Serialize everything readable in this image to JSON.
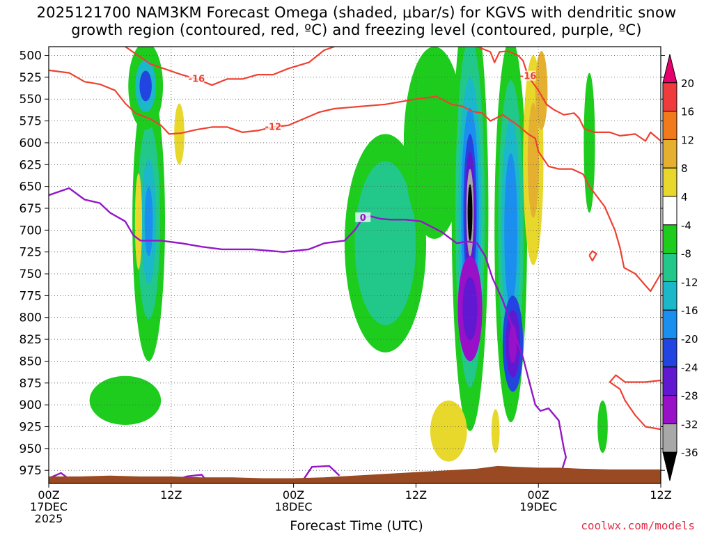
{
  "title": {
    "line1": "2025121700 NAM3KM Forecast Omega (shaded, μbar/s) for KGVS with dendritic snow",
    "line2": "growth region (contoured, red, ºC) and freezing level (contoured, purple, ºC)"
  },
  "credit": "coolwx.com/models",
  "chart_data": {
    "type": "heatmap",
    "xlabel": "Forecast Time (UTC)",
    "x_range_hours": [
      0,
      60
    ],
    "x_ticks": [
      {
        "h": 0,
        "lines": [
          "00Z",
          "17DEC",
          "2025"
        ]
      },
      {
        "h": 12,
        "lines": [
          "12Z"
        ]
      },
      {
        "h": 24,
        "lines": [
          "00Z",
          "18DEC"
        ]
      },
      {
        "h": 36,
        "lines": [
          "12Z"
        ]
      },
      {
        "h": 48,
        "lines": [
          "00Z",
          "19DEC"
        ]
      },
      {
        "h": 60,
        "lines": [
          "12Z"
        ]
      }
    ],
    "y_ticks_hpa": [
      500,
      525,
      550,
      575,
      600,
      625,
      650,
      675,
      700,
      725,
      750,
      775,
      800,
      825,
      850,
      875,
      900,
      925,
      950,
      975
    ],
    "y_range_hpa": [
      490,
      990
    ],
    "grid": "dotted",
    "colorbar": {
      "levels": [
        "20",
        "16",
        "12",
        "8",
        "4",
        "-4",
        "-8",
        "-12",
        "-16",
        "-20",
        "-24",
        "-28",
        "-32",
        "-36"
      ],
      "colors": [
        "#e8006c",
        "#ef3b3b",
        "#f07a1c",
        "#e5b030",
        "#e8d82c",
        "#ffffff",
        "#1ecc1e",
        "#22c88a",
        "#1ab8c8",
        "#1a8ff0",
        "#2244e0",
        "#6018d0",
        "#9810c8",
        "#a8a8a8",
        "#000000"
      ]
    },
    "contours": [
      {
        "kind": "dgz",
        "label": "-16",
        "color": "#ef4030",
        "points": [
          [
            7.5,
            490
          ],
          [
            8.5,
            498
          ],
          [
            10,
            510
          ],
          [
            11.5,
            516
          ],
          [
            13,
            522
          ],
          [
            14.5,
            527
          ],
          [
            16,
            534
          ],
          [
            17.5,
            527
          ],
          [
            19,
            527
          ],
          [
            20.5,
            522
          ],
          [
            22,
            522
          ],
          [
            23.5,
            515
          ],
          [
            25.5,
            508
          ],
          [
            27,
            494
          ],
          [
            28,
            490
          ]
        ]
      },
      {
        "kind": "dgz",
        "label": "-16",
        "color": "#ef4030",
        "points": [
          [
            42,
            490
          ],
          [
            43.3,
            496
          ],
          [
            43.7,
            508
          ],
          [
            44.2,
            496
          ],
          [
            45,
            495
          ],
          [
            46,
            500
          ],
          [
            46.5,
            506
          ],
          [
            47,
            524
          ],
          [
            48,
            540
          ],
          [
            48.8,
            556
          ],
          [
            49.5,
            562
          ],
          [
            50.5,
            568
          ],
          [
            51.5,
            566
          ],
          [
            52,
            572
          ],
          [
            52.5,
            584
          ],
          [
            53.5,
            588
          ],
          [
            55,
            588
          ],
          [
            56,
            592
          ],
          [
            57.5,
            590
          ],
          [
            58.5,
            598
          ],
          [
            59,
            588
          ],
          [
            60,
            598
          ]
        ]
      },
      {
        "kind": "dgz",
        "label": "-12",
        "color": "#ef4030",
        "points": [
          [
            0,
            517
          ],
          [
            2,
            520
          ],
          [
            3.5,
            530
          ],
          [
            5,
            533
          ],
          [
            6.5,
            540
          ],
          [
            7.5,
            555
          ],
          [
            8.5,
            566
          ],
          [
            10,
            573
          ],
          [
            11,
            580
          ],
          [
            11.8,
            590
          ],
          [
            13,
            589
          ],
          [
            14.5,
            585
          ],
          [
            16,
            582
          ],
          [
            17.5,
            582
          ],
          [
            19,
            588
          ],
          [
            20.5,
            586
          ],
          [
            22,
            582
          ],
          [
            23.5,
            580
          ],
          [
            24.5,
            575
          ],
          [
            26.5,
            565
          ],
          [
            28,
            561
          ],
          [
            30,
            559
          ],
          [
            33,
            556
          ],
          [
            36,
            550
          ],
          [
            38,
            547
          ],
          [
            39.5,
            556
          ],
          [
            40.5,
            558
          ],
          [
            41.5,
            564
          ],
          [
            42.5,
            566
          ],
          [
            43.3,
            575
          ],
          [
            44.5,
            568
          ],
          [
            46,
            580
          ],
          [
            47,
            590
          ],
          [
            47.7,
            595
          ],
          [
            48,
            610
          ],
          [
            49,
            627
          ],
          [
            50,
            630
          ],
          [
            51.3,
            630
          ],
          [
            52.4,
            636
          ],
          [
            53,
            650
          ],
          [
            54.5,
            673
          ],
          [
            55.5,
            700
          ],
          [
            56,
            720
          ],
          [
            56.4,
            743
          ],
          [
            57.5,
            750
          ],
          [
            59,
            770
          ],
          [
            60,
            750
          ]
        ]
      },
      {
        "kind": "dgz",
        "label": "",
        "color": "#ef4030",
        "points": [
          [
            53,
            729
          ],
          [
            53.3,
            735
          ],
          [
            53.7,
            727
          ],
          [
            53.3,
            724
          ],
          [
            53,
            729
          ]
        ]
      },
      {
        "kind": "dgz",
        "label": "",
        "color": "#ef4030",
        "points": [
          [
            60,
            872
          ],
          [
            58.5,
            874
          ],
          [
            56.5,
            874
          ],
          [
            55.6,
            866
          ],
          [
            55,
            874
          ],
          [
            56,
            882
          ],
          [
            56.5,
            895
          ],
          [
            57.5,
            912
          ],
          [
            58.5,
            925
          ],
          [
            60,
            928
          ]
        ]
      },
      {
        "kind": "freezing",
        "label": "0",
        "color": "#9416c8",
        "points": [
          [
            0,
            660
          ],
          [
            2,
            652
          ],
          [
            3.5,
            665
          ],
          [
            5,
            669
          ],
          [
            6,
            680
          ],
          [
            7.5,
            690
          ],
          [
            8.3,
            706
          ],
          [
            9,
            712
          ],
          [
            11,
            712
          ],
          [
            13,
            715
          ],
          [
            15,
            719
          ],
          [
            17,
            722
          ],
          [
            20,
            722
          ],
          [
            23,
            725
          ],
          [
            25.5,
            722
          ],
          [
            27,
            715
          ],
          [
            29,
            712
          ],
          [
            30,
            700
          ],
          [
            30.8,
            686
          ],
          [
            31.5,
            684
          ],
          [
            32.5,
            687
          ],
          [
            33.5,
            688
          ],
          [
            35,
            688
          ],
          [
            36.5,
            690
          ],
          [
            38.5,
            702
          ],
          [
            40,
            715
          ],
          [
            41,
            713
          ],
          [
            42,
            715
          ],
          [
            42.8,
            730
          ],
          [
            43.5,
            755
          ],
          [
            44.5,
            780
          ],
          [
            45.2,
            803
          ],
          [
            46.5,
            846
          ],
          [
            47.3,
            882
          ],
          [
            47.7,
            900
          ],
          [
            48.2,
            907
          ],
          [
            49,
            904
          ],
          [
            50,
            918
          ],
          [
            50.5,
            950
          ],
          [
            50.7,
            960
          ],
          [
            50.3,
            975
          ]
        ]
      },
      {
        "kind": "freezing",
        "label": "",
        "color": "#9416c8",
        "points": [
          [
            0,
            984
          ],
          [
            1.2,
            978
          ],
          [
            2,
            985
          ]
        ]
      },
      {
        "kind": "freezing",
        "label": "",
        "color": "#9416c8",
        "points": [
          [
            12,
            988
          ],
          [
            13.5,
            982
          ],
          [
            15,
            980
          ],
          [
            15.5,
            988
          ]
        ]
      },
      {
        "kind": "freezing",
        "label": "",
        "color": "#9416c8",
        "points": [
          [
            25,
            985
          ],
          [
            25.8,
            971
          ],
          [
            27.5,
            970
          ],
          [
            28.5,
            981
          ]
        ]
      }
    ]
  }
}
